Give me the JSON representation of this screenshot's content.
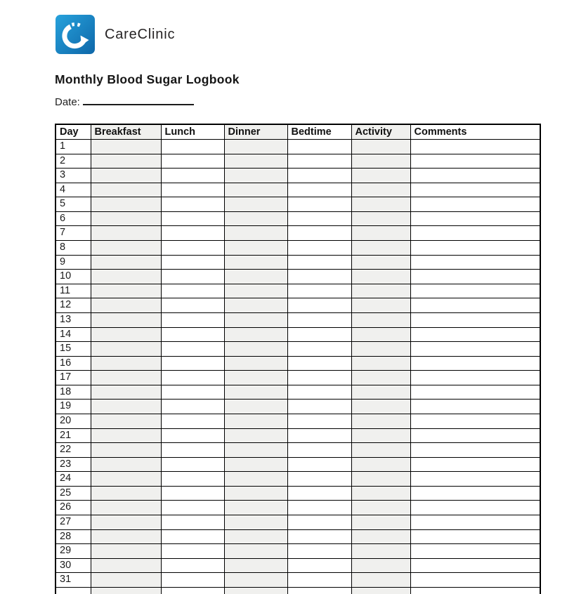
{
  "brand": {
    "name": "CareClinic",
    "logo_icon": "circular-arrow-progress",
    "logo_gradient_top": "#27a2dc",
    "logo_gradient_bottom": "#0e67a9"
  },
  "document": {
    "title": "Monthly Blood Sugar Logbook",
    "date_label": "Date:",
    "date_value": ""
  },
  "colors": {
    "shade": "#f0f0ee",
    "border": "#000000",
    "text": "#1a1a1a",
    "background": "#ffffff"
  },
  "table": {
    "columns": [
      {
        "key": "day",
        "label": "Day",
        "shaded": false,
        "width": 50
      },
      {
        "key": "breakfast",
        "label": "Breakfast",
        "shaded": true,
        "width": 100
      },
      {
        "key": "lunch",
        "label": "Lunch",
        "shaded": false,
        "width": 90
      },
      {
        "key": "dinner",
        "label": "Dinner",
        "shaded": true,
        "width": 90
      },
      {
        "key": "bedtime",
        "label": "Bedtime",
        "shaded": false,
        "width": 91
      },
      {
        "key": "activity",
        "label": "Activity",
        "shaded": true,
        "width": 84
      },
      {
        "key": "comments",
        "label": "Comments",
        "shaded": false,
        "width": 185
      }
    ],
    "days": [
      "1",
      "2",
      "3",
      "4",
      "5",
      "6",
      "7",
      "8",
      "9",
      "10",
      "11",
      "12",
      "13",
      "14",
      "15",
      "16",
      "17",
      "18",
      "19",
      "20",
      "21",
      "22",
      "23",
      "24",
      "25",
      "26",
      "27",
      "28",
      "29",
      "30",
      "31"
    ],
    "cell_values": [],
    "extra_partial_row": true
  }
}
